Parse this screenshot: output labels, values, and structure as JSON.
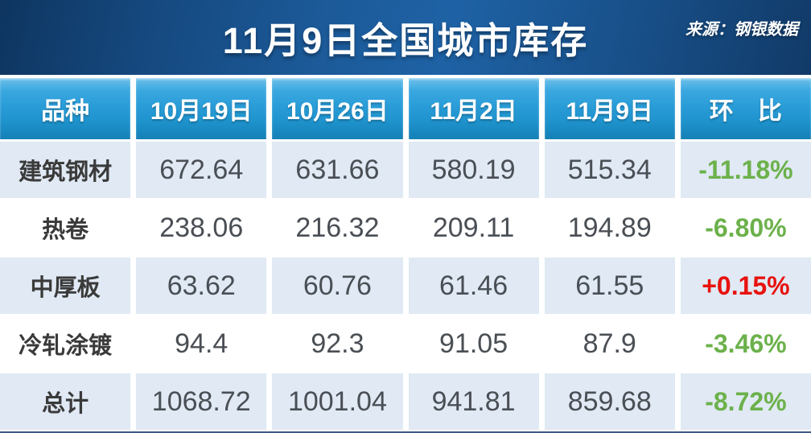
{
  "header": {
    "title": "11月9日全国城市库存",
    "source": "来源：钢银数据"
  },
  "table": {
    "columns": [
      "品种",
      "10月19日",
      "10月26日",
      "11月2日",
      "11月9日",
      "环　比"
    ],
    "rows": [
      {
        "name": "建筑钢材",
        "values": [
          "672.64",
          "631.66",
          "580.19",
          "515.34"
        ],
        "change": "-11.18%",
        "trend": "down"
      },
      {
        "name": "热卷",
        "values": [
          "238.06",
          "216.32",
          "209.11",
          "194.89"
        ],
        "change": "-6.80%",
        "trend": "down"
      },
      {
        "name": "中厚板",
        "values": [
          "63.62",
          "60.76",
          "61.46",
          "61.55"
        ],
        "change": "+0.15%",
        "trend": "up"
      },
      {
        "name": "冷轧涂镀",
        "values": [
          "94.4",
          "92.3",
          "91.05",
          "87.9"
        ],
        "change": "-3.46%",
        "trend": "down"
      },
      {
        "name": "总计",
        "values": [
          "1068.72",
          "1001.04",
          "941.81",
          "859.68"
        ],
        "change": "-8.72%",
        "trend": "down"
      }
    ]
  },
  "chart_data": {
    "type": "table",
    "title": "11月9日全国城市库存",
    "source": "来源：钢银数据",
    "columns": [
      "品种",
      "10月19日",
      "10月26日",
      "11月2日",
      "11月9日",
      "环比"
    ],
    "rows": [
      [
        "建筑钢材",
        672.64,
        631.66,
        580.19,
        515.34,
        "-11.18%"
      ],
      [
        "热卷",
        238.06,
        216.32,
        209.11,
        194.89,
        "-6.80%"
      ],
      [
        "中厚板",
        63.62,
        60.76,
        61.46,
        61.55,
        "+0.15%"
      ],
      [
        "冷轧涂镀",
        94.4,
        92.3,
        91.05,
        87.9,
        "-3.46%"
      ],
      [
        "总计",
        1068.72,
        1001.04,
        941.81,
        859.68,
        "-8.72%"
      ]
    ]
  },
  "colors": {
    "banner_blue": "#1c5a99",
    "header_cell_blue": "#2a9dd8",
    "light_row": "#e0e9f4",
    "down_green": "#6cb14b",
    "up_red": "#e8120e",
    "number_gray": "#4a4f55",
    "bottom_bar": "#3c5a88"
  }
}
